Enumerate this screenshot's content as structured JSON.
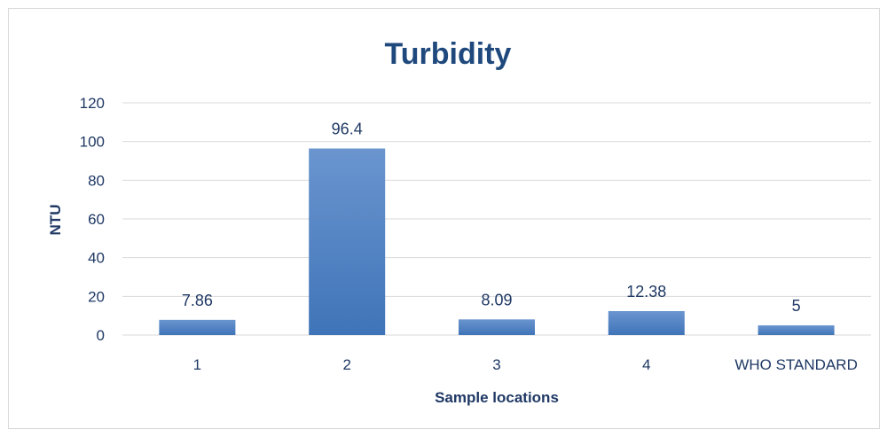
{
  "chart_data": {
    "type": "bar",
    "title": "Turbidity",
    "xlabel": "Sample locations",
    "ylabel": "NTU",
    "categories": [
      "1",
      "2",
      "3",
      "4",
      "WHO STANDARD"
    ],
    "values": [
      7.86,
      96.4,
      8.09,
      12.38,
      5
    ],
    "data_labels": [
      "7.86",
      "96.4",
      "8.09",
      "12.38",
      "5"
    ],
    "yticks": [
      0,
      20,
      40,
      60,
      80,
      100,
      120
    ],
    "ylim": [
      0,
      120
    ],
    "grid": true,
    "bar_color": "#4a7ebf",
    "bar_gradient_top": "#6a95cf",
    "bar_gradient_bottom": "#3f74b8"
  }
}
